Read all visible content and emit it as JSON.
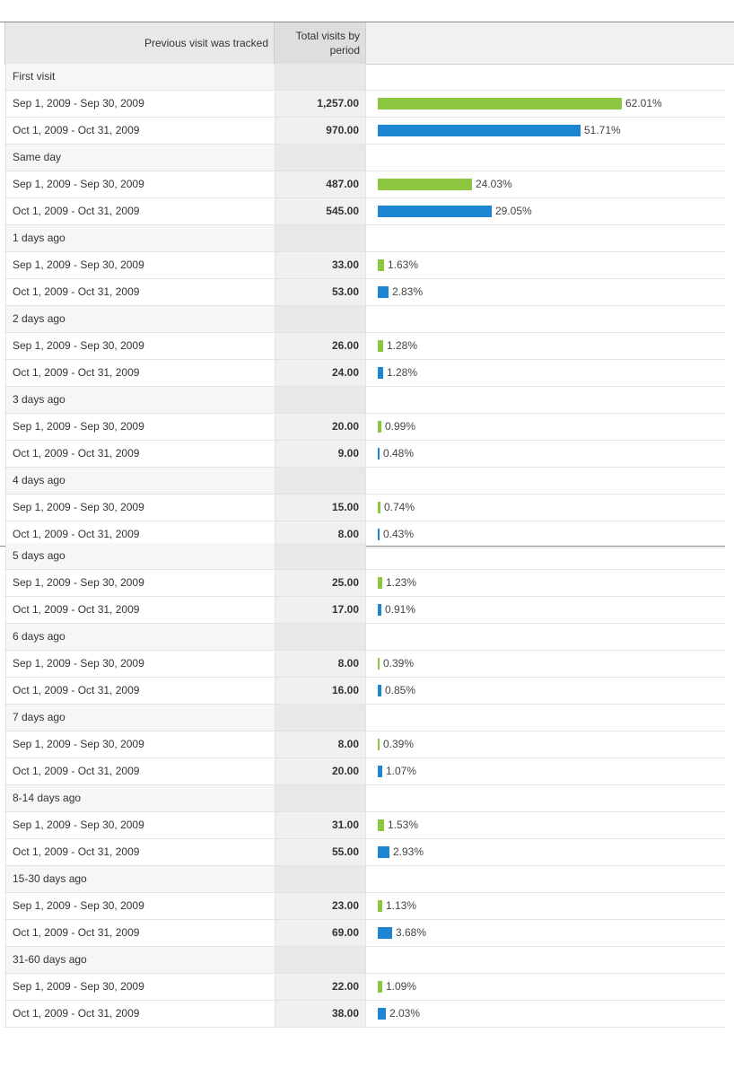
{
  "header": {
    "col_label": "Previous visit was tracked",
    "col_total": "Total visits by period"
  },
  "colors": {
    "sep_bar": "#8dc63f",
    "oct_bar": "#1c86d2"
  },
  "groups": [
    {
      "label": "First visit",
      "rows": [
        {
          "period": "Sep 1, 2009 - Sep 30, 2009",
          "value": "1,257.00",
          "pct_label": "62.01%",
          "pct": 62.01,
          "series": "sep"
        },
        {
          "period": "Oct 1, 2009 - Oct 31, 2009",
          "value": "970.00",
          "pct_label": "51.71%",
          "pct": 51.71,
          "series": "oct"
        }
      ]
    },
    {
      "label": "Same day",
      "rows": [
        {
          "period": "Sep 1, 2009 - Sep 30, 2009",
          "value": "487.00",
          "pct_label": "24.03%",
          "pct": 24.03,
          "series": "sep"
        },
        {
          "period": "Oct 1, 2009 - Oct 31, 2009",
          "value": "545.00",
          "pct_label": "29.05%",
          "pct": 29.05,
          "series": "oct"
        }
      ]
    },
    {
      "label": "1 days ago",
      "rows": [
        {
          "period": "Sep 1, 2009 - Sep 30, 2009",
          "value": "33.00",
          "pct_label": "1.63%",
          "pct": 1.63,
          "series": "sep"
        },
        {
          "period": "Oct 1, 2009 - Oct 31, 2009",
          "value": "53.00",
          "pct_label": "2.83%",
          "pct": 2.83,
          "series": "oct"
        }
      ]
    },
    {
      "label": "2 days ago",
      "rows": [
        {
          "period": "Sep 1, 2009 - Sep 30, 2009",
          "value": "26.00",
          "pct_label": "1.28%",
          "pct": 1.28,
          "series": "sep"
        },
        {
          "period": "Oct 1, 2009 - Oct 31, 2009",
          "value": "24.00",
          "pct_label": "1.28%",
          "pct": 1.28,
          "series": "oct"
        }
      ]
    },
    {
      "label": "3 days ago",
      "rows": [
        {
          "period": "Sep 1, 2009 - Sep 30, 2009",
          "value": "20.00",
          "pct_label": "0.99%",
          "pct": 0.99,
          "series": "sep"
        },
        {
          "period": "Oct 1, 2009 - Oct 31, 2009",
          "value": "9.00",
          "pct_label": "0.48%",
          "pct": 0.48,
          "series": "oct"
        }
      ]
    },
    {
      "label": "4 days ago",
      "rows": [
        {
          "period": "Sep 1, 2009 - Sep 30, 2009",
          "value": "15.00",
          "pct_label": "0.74%",
          "pct": 0.74,
          "series": "sep"
        },
        {
          "period": "Oct 1, 2009 - Oct 31, 2009",
          "value": "8.00",
          "pct_label": "0.43%",
          "pct": 0.43,
          "series": "oct"
        }
      ]
    },
    {
      "label": "5 days ago",
      "rows": [
        {
          "period": "Sep 1, 2009 - Sep 30, 2009",
          "value": "25.00",
          "pct_label": "1.23%",
          "pct": 1.23,
          "series": "sep"
        },
        {
          "period": "Oct 1, 2009 - Oct 31, 2009",
          "value": "17.00",
          "pct_label": "0.91%",
          "pct": 0.91,
          "series": "oct"
        }
      ]
    },
    {
      "label": "6 days ago",
      "rows": [
        {
          "period": "Sep 1, 2009 - Sep 30, 2009",
          "value": "8.00",
          "pct_label": "0.39%",
          "pct": 0.39,
          "series": "sep"
        },
        {
          "period": "Oct 1, 2009 - Oct 31, 2009",
          "value": "16.00",
          "pct_label": "0.85%",
          "pct": 0.85,
          "series": "oct"
        }
      ]
    },
    {
      "label": "7 days ago",
      "rows": [
        {
          "period": "Sep 1, 2009 - Sep 30, 2009",
          "value": "8.00",
          "pct_label": "0.39%",
          "pct": 0.39,
          "series": "sep"
        },
        {
          "period": "Oct 1, 2009 - Oct 31, 2009",
          "value": "20.00",
          "pct_label": "1.07%",
          "pct": 1.07,
          "series": "oct"
        }
      ]
    },
    {
      "label": "8-14 days ago",
      "rows": [
        {
          "period": "Sep 1, 2009 - Sep 30, 2009",
          "value": "31.00",
          "pct_label": "1.53%",
          "pct": 1.53,
          "series": "sep"
        },
        {
          "period": "Oct 1, 2009 - Oct 31, 2009",
          "value": "55.00",
          "pct_label": "2.93%",
          "pct": 2.93,
          "series": "oct"
        }
      ]
    },
    {
      "label": "15-30 days ago",
      "rows": [
        {
          "period": "Sep 1, 2009 - Sep 30, 2009",
          "value": "23.00",
          "pct_label": "1.13%",
          "pct": 1.13,
          "series": "sep"
        },
        {
          "period": "Oct 1, 2009 - Oct 31, 2009",
          "value": "69.00",
          "pct_label": "3.68%",
          "pct": 3.68,
          "series": "oct"
        }
      ]
    },
    {
      "label": "31-60 days ago",
      "rows": [
        {
          "period": "Sep 1, 2009 - Sep 30, 2009",
          "value": "22.00",
          "pct_label": "1.09%",
          "pct": 1.09,
          "series": "sep"
        },
        {
          "period": "Oct 1, 2009 - Oct 31, 2009",
          "value": "38.00",
          "pct_label": "2.03%",
          "pct": 2.03,
          "series": "oct"
        }
      ]
    }
  ]
}
